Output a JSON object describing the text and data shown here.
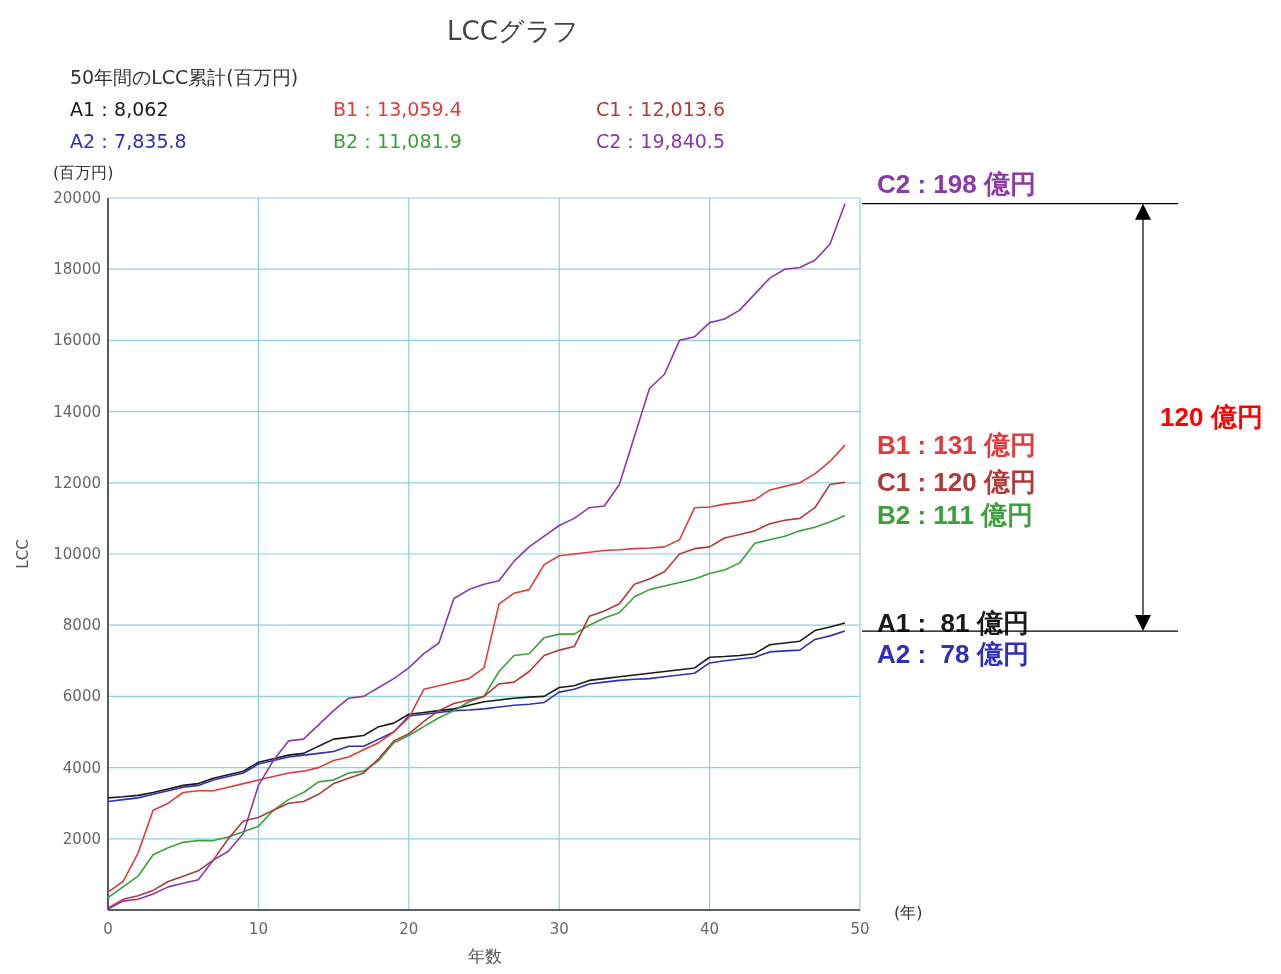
{
  "chart_data": {
    "type": "line",
    "title": "LCCグラフ",
    "xlabel": "年数",
    "ylabel": "LCC",
    "legend_title": "50年間のLCC累計(百万円)",
    "legend": "top left",
    "grid": true,
    "marker": "none",
    "line_style": "solid",
    "x": [
      0,
      1,
      2,
      3,
      4,
      5,
      6,
      7,
      8,
      9,
      10,
      11,
      12,
      13,
      14,
      15,
      16,
      17,
      18,
      19,
      20,
      21,
      22,
      23,
      24,
      25,
      26,
      27,
      28,
      29,
      30,
      31,
      32,
      33,
      34,
      35,
      36,
      37,
      38,
      39,
      40,
      41,
      42,
      43,
      44,
      45,
      46,
      47,
      48,
      49
    ],
    "xlim": [
      0,
      50
    ],
    "xticks": [
      0,
      10,
      20,
      30,
      40,
      50
    ],
    "ylim": [
      0,
      20000
    ],
    "yticks": [
      {
        "value": 0,
        "label": null
      },
      2000,
      4000,
      6000,
      8000,
      10000,
      12000,
      14000,
      16000,
      18000,
      20000
    ],
    "series": [
      {
        "name": "A1：8,062",
        "color": "#1a1a1a",
        "values": [
          3150,
          3180,
          3220,
          3300,
          3400,
          3500,
          3550,
          3700,
          3800,
          3900,
          4150,
          4250,
          4350,
          4400,
          4600,
          4800,
          4850,
          4900,
          5150,
          5250,
          5500,
          5550,
          5600,
          5650,
          5750,
          5850,
          5900,
          5950,
          5980,
          6000,
          6250,
          6300,
          6450,
          6500,
          6550,
          6600,
          6650,
          6700,
          6750,
          6800,
          7100,
          7120,
          7150,
          7200,
          7450,
          7500,
          7550,
          7850,
          7950,
          8062
        ]
      },
      {
        "name": "A2：7,835.8",
        "color": "#2f2fb8",
        "values": [
          3050,
          3100,
          3150,
          3250,
          3350,
          3450,
          3500,
          3650,
          3750,
          3850,
          4100,
          4200,
          4300,
          4350,
          4400,
          4450,
          4600,
          4600,
          4800,
          5000,
          5450,
          5500,
          5550,
          5600,
          5620,
          5650,
          5700,
          5750,
          5780,
          5830,
          6120,
          6200,
          6350,
          6400,
          6450,
          6480,
          6500,
          6550,
          6600,
          6650,
          6940,
          7000,
          7050,
          7100,
          7250,
          7280,
          7300,
          7600,
          7700,
          7835.8
        ]
      },
      {
        "name": "B1：13,059.4",
        "color": "#e03c3c",
        "values": [
          500,
          800,
          1600,
          2800,
          3000,
          3300,
          3350,
          3350,
          3450,
          3550,
          3650,
          3750,
          3850,
          3900,
          4000,
          4200,
          4300,
          4500,
          4700,
          5000,
          5400,
          6200,
          6300,
          6400,
          6500,
          6800,
          8600,
          8900,
          9000,
          9700,
          9950,
          10000,
          10050,
          10100,
          10120,
          10150,
          10170,
          10200,
          10400,
          11300,
          11320,
          11400,
          11450,
          11520,
          11800,
          11900,
          12000,
          12250,
          12600,
          13059.4
        ]
      },
      {
        "name": "B2：11,081.9",
        "color": "#3aa03a",
        "values": [
          350,
          650,
          950,
          1550,
          1750,
          1900,
          1950,
          1950,
          2050,
          2200,
          2350,
          2800,
          3100,
          3300,
          3600,
          3650,
          3850,
          3900,
          4200,
          4700,
          4900,
          5150,
          5400,
          5600,
          5850,
          6000,
          6700,
          7150,
          7200,
          7650,
          7750,
          7750,
          8000,
          8200,
          8350,
          8800,
          9000,
          9100,
          9200,
          9300,
          9450,
          9550,
          9750,
          10300,
          10400,
          10500,
          10650,
          10750,
          10900,
          11081.9
        ]
      },
      {
        "name": "C1：12,013.6",
        "color": "#b03a3a",
        "values": [
          50,
          300,
          400,
          550,
          800,
          950,
          1100,
          1400,
          2000,
          2500,
          2600,
          2800,
          3000,
          3050,
          3250,
          3550,
          3700,
          3850,
          4250,
          4750,
          4950,
          5300,
          5600,
          5800,
          5900,
          6000,
          6350,
          6400,
          6700,
          7150,
          7300,
          7400,
          8250,
          8400,
          8600,
          9150,
          9300,
          9500,
          10000,
          10150,
          10200,
          10450,
          10550,
          10650,
          10850,
          10950,
          11000,
          11300,
          11950,
          12013.6
        ]
      },
      {
        "name": "C2：19,840.5",
        "color": "#8a3aa6",
        "values": [
          30,
          250,
          300,
          450,
          650,
          750,
          850,
          1400,
          1650,
          2150,
          3500,
          4200,
          4750,
          4800,
          5200,
          5600,
          5950,
          6000,
          6250,
          6500,
          6800,
          7200,
          7500,
          8750,
          9000,
          9150,
          9250,
          9800,
          10200,
          10500,
          10800,
          11000,
          11300,
          11350,
          11950,
          13300,
          14650,
          15050,
          16000,
          16100,
          16500,
          16600,
          16850,
          17300,
          17750,
          18000,
          18050,
          18250,
          18700,
          19840.5
        ]
      }
    ],
    "annotations": [
      "(百万円)",
      "(年)",
      "120 億円",
      "C2 : 198 億円",
      "B1 : 131 億円",
      "C1 : 120 億円",
      "B2 : 111 億円",
      "A1 :  81 億円",
      "A2 :  78 億円"
    ]
  }
}
